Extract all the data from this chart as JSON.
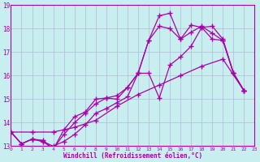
{
  "xlabel": "Windchill (Refroidissement éolien,°C)",
  "xlim": [
    0,
    23
  ],
  "ylim": [
    13,
    19
  ],
  "yticks": [
    13,
    14,
    15,
    16,
    17,
    18,
    19
  ],
  "xticks": [
    0,
    1,
    2,
    3,
    4,
    5,
    6,
    7,
    8,
    9,
    10,
    11,
    12,
    13,
    14,
    15,
    16,
    17,
    18,
    19,
    20,
    21,
    22,
    23
  ],
  "background_color": "#c8eef0",
  "grid_color": "#b0b8d8",
  "line_color": "#aa00aa",
  "marker": "+",
  "markersize": 4,
  "linewidth": 0.9,
  "series": [
    {
      "x": [
        0,
        1,
        2,
        3,
        4,
        5,
        6,
        7,
        8,
        9,
        10,
        11,
        12,
        13,
        14,
        15,
        16,
        17,
        18,
        19,
        20,
        21,
        22
      ],
      "y": [
        13.6,
        13.1,
        13.3,
        13.2,
        13.0,
        13.2,
        13.5,
        13.9,
        14.4,
        14.6,
        14.85,
        15.1,
        16.1,
        17.5,
        18.55,
        18.65,
        17.55,
        17.85,
        18.1,
        17.8,
        17.5,
        16.1,
        15.35
      ]
    },
    {
      "x": [
        0,
        1,
        2,
        3,
        4,
        5,
        6,
        7,
        8,
        9,
        10,
        11,
        12,
        13,
        14,
        15,
        16,
        17,
        18,
        19,
        20,
        21,
        22
      ],
      "y": [
        13.6,
        13.1,
        13.3,
        13.2,
        12.9,
        13.5,
        14.0,
        14.4,
        14.8,
        15.05,
        15.15,
        15.5,
        16.1,
        16.1,
        15.05,
        16.45,
        16.8,
        17.25,
        18.05,
        17.55,
        17.5,
        16.1,
        15.35
      ]
    },
    {
      "x": [
        0,
        1,
        2,
        3,
        4,
        5,
        6,
        7,
        8,
        9,
        10,
        11,
        12,
        13,
        14,
        15,
        16,
        17,
        18,
        19,
        20,
        21,
        22
      ],
      "y": [
        13.6,
        13.1,
        13.3,
        13.25,
        12.87,
        13.7,
        14.25,
        14.45,
        15.0,
        15.05,
        15.0,
        15.5,
        16.1,
        17.5,
        18.1,
        18.0,
        17.55,
        18.15,
        18.05,
        18.1,
        17.55,
        16.1,
        15.35
      ]
    },
    {
      "x": [
        0,
        2,
        4,
        6,
        8,
        10,
        12,
        14,
        16,
        18,
        20,
        22
      ],
      "y": [
        13.6,
        13.6,
        13.6,
        13.8,
        14.1,
        14.7,
        15.2,
        15.6,
        16.0,
        16.4,
        16.7,
        15.35
      ]
    }
  ]
}
